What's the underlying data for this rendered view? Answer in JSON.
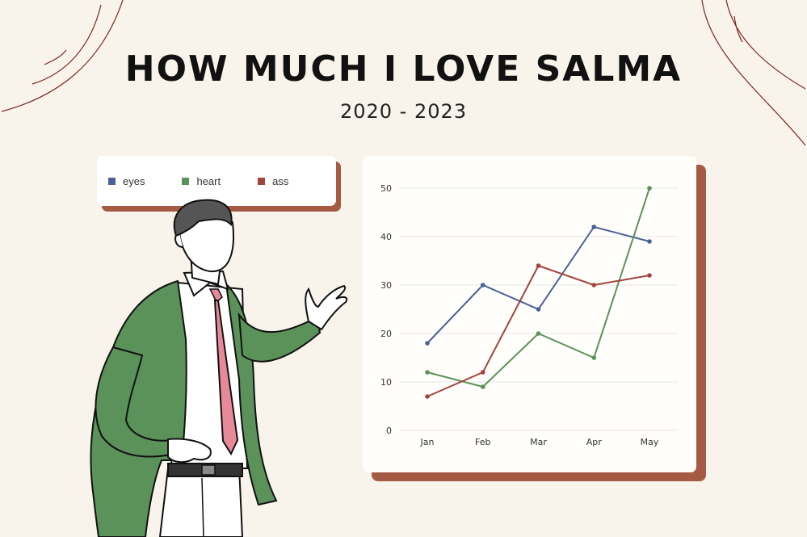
{
  "title": "HOW MUCH I LOVE SALMA",
  "subtitle": "2020 - 2023",
  "colors": {
    "background": "#f8f3eb",
    "card": "#ffffff",
    "card_shadow": "#a55a44",
    "eyes": "#4a6196",
    "heart": "#5a9259",
    "ass": "#a3433e"
  },
  "chart_data": {
    "type": "line",
    "categories": [
      "Jan",
      "Feb",
      "Mar",
      "Apr",
      "May"
    ],
    "series": [
      {
        "name": "eyes",
        "values": [
          18,
          30,
          25,
          42,
          39
        ]
      },
      {
        "name": "heart",
        "values": [
          12,
          9,
          20,
          15,
          50
        ]
      },
      {
        "name": "ass",
        "values": [
          7,
          12,
          34,
          30,
          32
        ]
      }
    ],
    "yticks": [
      0,
      10,
      20,
      30,
      40,
      50
    ],
    "ylim": [
      0,
      50
    ],
    "grid": true,
    "legend": "separate card, top-left of chart"
  }
}
